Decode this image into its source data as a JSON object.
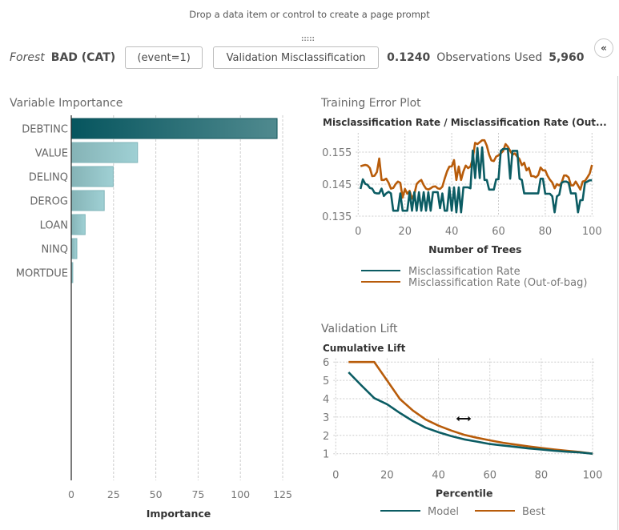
{
  "page_prompt": "Drop a data item or control to create a page prompt",
  "header": {
    "model_label": "Forest",
    "target": "BAD (CAT)",
    "event_button": "(event=1)",
    "metric_button": "Validation Misclassification",
    "metric_value": "0.1240",
    "observations_label": "Observations Used",
    "observations_value": "5,960",
    "collapse_icon": "double-chevron-left-icon"
  },
  "colors": {
    "misclassification": "#0b5c63",
    "oob": "#b85c0a",
    "importance_dark": "#0a5a63",
    "importance_light": "#8cc3c8",
    "grid": "#cccccc"
  },
  "variable_importance": {
    "title": "Variable Importance"
  },
  "training_error": {
    "title": "Training Error Plot",
    "subtitle": "Misclassification Rate / Misclassification Rate (Out..."
  },
  "validation_lift": {
    "title": "Validation Lift",
    "subtitle": "Cumulative Lift"
  },
  "chart_data": [
    {
      "id": "importance",
      "type": "bar",
      "orientation": "horizontal",
      "title": "Variable Importance",
      "categories": [
        "DEBTINC",
        "VALUE",
        "DELINQ",
        "DEROG",
        "LOAN",
        "NINQ",
        "MORTDUE"
      ],
      "values": [
        121.7,
        39.2,
        24.8,
        19.5,
        8.2,
        3.3,
        0.9
      ],
      "xlabel": "Importance",
      "ylabel": "",
      "xlim": [
        0,
        130
      ],
      "xticks": [
        0,
        25,
        50,
        75,
        100,
        125
      ],
      "grid": true
    },
    {
      "id": "training_error",
      "type": "line",
      "title": "Misclassification Rate / Misclassification Rate (Out...",
      "xlabel": "Number of Trees",
      "ylabel": "",
      "xlim": [
        0,
        100
      ],
      "ylim": [
        0.135,
        0.161
      ],
      "xticks": [
        0,
        20,
        40,
        60,
        80,
        100
      ],
      "yticks": [
        0.135,
        0.145,
        0.155
      ],
      "yticklabels": [
        "0.135",
        "0.145",
        "0.155"
      ],
      "grid": true,
      "legend": "bottom",
      "series": [
        {
          "name": "Misclassification Rate",
          "color": "#0b5c63",
          "x": [
            1,
            2,
            3,
            4,
            5,
            6,
            7,
            8,
            9,
            10,
            11,
            12,
            13,
            14,
            15,
            16,
            17,
            18,
            19,
            20,
            21,
            22,
            23,
            24,
            25,
            26,
            27,
            28,
            29,
            30,
            31,
            32,
            33,
            34,
            35,
            36,
            37,
            38,
            39,
            40,
            41,
            42,
            43,
            44,
            45,
            46,
            47,
            48,
            49,
            50,
            51,
            52,
            53,
            54,
            55,
            56,
            57,
            58,
            59,
            60,
            61,
            62,
            63,
            64,
            65,
            66,
            67,
            68,
            69,
            70,
            71,
            72,
            73,
            74,
            75,
            76,
            77,
            78,
            79,
            80,
            81,
            82,
            83,
            84,
            85,
            86,
            87,
            88,
            89,
            90,
            91,
            92,
            93,
            94,
            95,
            96,
            97,
            98,
            99,
            100
          ],
          "values": [
            0.1435,
            0.1465,
            0.1451,
            0.1448,
            0.1438,
            0.1436,
            0.1423,
            0.1421,
            0.1421,
            0.1436,
            0.1413,
            0.1421,
            0.1426,
            0.1421,
            0.1367,
            0.1367,
            0.1367,
            0.1421,
            0.1367,
            0.1367,
            0.1367,
            0.1425,
            0.1367,
            0.1425,
            0.1367,
            0.1425,
            0.1367,
            0.1425,
            0.1367,
            0.1425,
            0.1367,
            0.1425,
            0.1425,
            0.1425,
            0.1375,
            0.1421,
            0.1367,
            0.1367,
            0.144,
            0.1367,
            0.144,
            0.1362,
            0.144,
            0.1362,
            0.144,
            0.144,
            0.144,
            0.1437,
            0.1555,
            0.1469,
            0.1563,
            0.1469,
            0.1565,
            0.1463,
            0.1463,
            0.1433,
            0.1433,
            0.1433,
            0.1465,
            0.1465,
            0.1554,
            0.156,
            0.156,
            0.156,
            0.1467,
            0.1554,
            0.1554,
            0.1554,
            0.1467,
            0.1463,
            0.1421,
            0.1421,
            0.1421,
            0.1421,
            0.1421,
            0.1421,
            0.1421,
            0.1467,
            0.1467,
            0.142,
            0.142,
            0.142,
            0.1412,
            0.1362,
            0.1412,
            0.1417,
            0.1454,
            0.1458,
            0.1458,
            0.1454,
            0.1421,
            0.1421,
            0.1421,
            0.1362,
            0.14,
            0.14,
            0.1454,
            0.1458,
            0.1462,
            0.1462
          ]
        },
        {
          "name": "Misclassification Rate (Out-of-bag)",
          "color": "#b85c0a",
          "x": [
            1,
            2,
            3,
            4,
            5,
            6,
            7,
            8,
            9,
            10,
            11,
            12,
            13,
            14,
            15,
            16,
            17,
            18,
            19,
            20,
            21,
            22,
            23,
            24,
            25,
            26,
            27,
            28,
            29,
            30,
            31,
            32,
            33,
            34,
            35,
            36,
            37,
            38,
            39,
            40,
            41,
            42,
            43,
            44,
            45,
            46,
            47,
            48,
            49,
            50,
            51,
            52,
            53,
            54,
            55,
            56,
            57,
            58,
            59,
            60,
            61,
            62,
            63,
            64,
            65,
            66,
            67,
            68,
            69,
            70,
            71,
            72,
            73,
            74,
            75,
            76,
            77,
            78,
            79,
            80,
            81,
            82,
            83,
            84,
            85,
            86,
            87,
            88,
            89,
            90,
            91,
            92,
            93,
            94,
            95,
            96,
            97,
            98,
            99,
            100
          ],
          "values": [
            0.1506,
            0.1508,
            0.151,
            0.1508,
            0.15,
            0.1475,
            0.1476,
            0.1488,
            0.153,
            0.1463,
            0.1463,
            0.1467,
            0.1454,
            0.1436,
            0.1438,
            0.145,
            0.1458,
            0.1454,
            0.1408,
            0.1435,
            0.142,
            0.1429,
            0.1405,
            0.1418,
            0.145,
            0.1458,
            0.1463,
            0.1447,
            0.1436,
            0.1433,
            0.1437,
            0.1442,
            0.1443,
            0.1437,
            0.1435,
            0.1442,
            0.1467,
            0.149,
            0.1505,
            0.1505,
            0.1525,
            0.1463,
            0.1505,
            0.1463,
            0.149,
            0.1508,
            0.15,
            0.1505,
            0.153,
            0.1579,
            0.1575,
            0.1581,
            0.1587,
            0.1587,
            0.157,
            0.1542,
            0.1524,
            0.1522,
            0.1536,
            0.154,
            0.1546,
            0.1554,
            0.1575,
            0.1567,
            0.1554,
            0.1542,
            0.1546,
            0.1536,
            0.1528,
            0.1509,
            0.1517,
            0.1493,
            0.1501,
            0.1475,
            0.1475,
            0.1471,
            0.1478,
            0.1502,
            0.1493,
            0.1493,
            0.1476,
            0.1464,
            0.1455,
            0.1437,
            0.145,
            0.1446,
            0.1454,
            0.1477,
            0.1477,
            0.1471,
            0.1446,
            0.1446,
            0.1458,
            0.1446,
            0.1433,
            0.1458,
            0.146,
            0.1471,
            0.1483,
            0.151
          ]
        }
      ]
    },
    {
      "id": "validation_lift",
      "type": "line",
      "title": "Cumulative Lift",
      "xlabel": "Percentile",
      "ylabel": "",
      "xlim": [
        0,
        100
      ],
      "ylim": [
        1,
        6
      ],
      "xticks": [
        0,
        20,
        40,
        60,
        80,
        100
      ],
      "yticks": [
        1,
        2,
        3,
        4,
        5,
        6
      ],
      "grid": true,
      "legend": "bottom",
      "series": [
        {
          "name": "Model",
          "color": "#0b5c63",
          "x": [
            5,
            10,
            15,
            20,
            25,
            30,
            35,
            40,
            45,
            50,
            55,
            60,
            65,
            70,
            75,
            80,
            85,
            90,
            95,
            100
          ],
          "values": [
            5.44,
            4.72,
            4.03,
            3.7,
            3.22,
            2.78,
            2.42,
            2.17,
            1.96,
            1.78,
            1.66,
            1.53,
            1.45,
            1.37,
            1.29,
            1.23,
            1.16,
            1.11,
            1.07,
            1.0
          ]
        },
        {
          "name": "Best",
          "color": "#b85c0a",
          "x": [
            5,
            10,
            15,
            20,
            25,
            30,
            35,
            40,
            45,
            50,
            55,
            60,
            65,
            70,
            75,
            80,
            85,
            90,
            95,
            100
          ],
          "values": [
            6.0,
            6.0,
            6.0,
            4.99,
            3.98,
            3.36,
            2.87,
            2.53,
            2.26,
            2.03,
            1.87,
            1.73,
            1.6,
            1.5,
            1.4,
            1.31,
            1.23,
            1.16,
            1.09,
            1.0
          ]
        }
      ]
    }
  ]
}
